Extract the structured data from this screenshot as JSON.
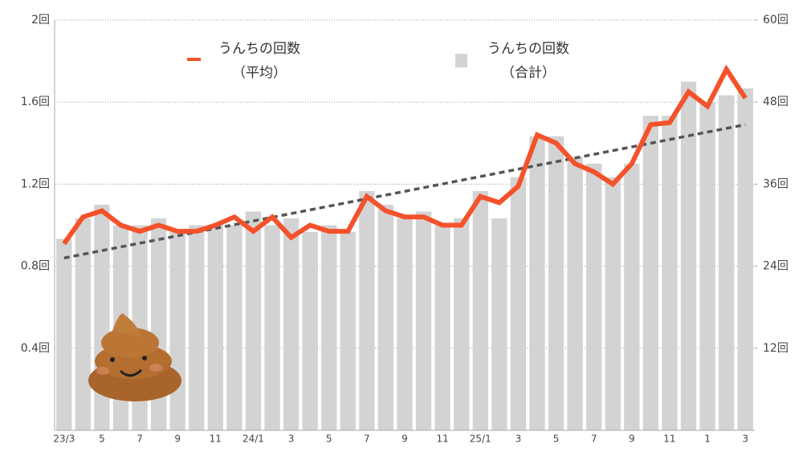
{
  "chart_data": {
    "type": "bar",
    "categories": [
      "23/3",
      null,
      "5",
      null,
      "7",
      null,
      "9",
      null,
      "11",
      null,
      "24/1",
      null,
      "3",
      null,
      "5",
      null,
      "7",
      null,
      "9",
      null,
      "11",
      null,
      "25/1",
      null,
      "3",
      null,
      "5",
      null,
      "7",
      null,
      "9",
      null,
      "11",
      null,
      "1",
      null,
      "3"
    ],
    "series": [
      {
        "name": "うんちの回数\n（平均）",
        "type": "line",
        "color": "#f4522b",
        "values": [
          0.91,
          1.04,
          1.07,
          1.0,
          0.97,
          1.0,
          0.97,
          0.97,
          1.0,
          1.04,
          0.97,
          1.04,
          0.94,
          1.0,
          0.97,
          0.97,
          1.14,
          1.07,
          1.04,
          1.04,
          1.0,
          1.0,
          1.14,
          1.11,
          1.19,
          1.44,
          1.4,
          1.3,
          1.26,
          1.2,
          1.3,
          1.49,
          1.5,
          1.65,
          1.58,
          1.76,
          1.62
        ]
      },
      {
        "name": "うんちの回数\n（合計）",
        "type": "bar",
        "axis": "y2",
        "color": "#d3d3d3",
        "values": [
          28,
          31,
          33,
          30,
          30,
          31,
          29,
          30,
          30,
          30,
          32,
          30,
          31,
          29,
          30,
          29,
          35,
          33,
          31,
          32,
          30,
          31,
          35,
          31,
          37,
          43,
          43,
          40,
          39,
          37,
          39,
          46,
          46,
          51,
          48,
          49,
          50
        ]
      }
    ],
    "trendline": {
      "values": [
        0.84,
        1.49
      ],
      "color": "#555555"
    },
    "ylim": [
      0,
      2
    ],
    "yticks": [
      {
        "value": 0.4,
        "label": "0.4回"
      },
      {
        "value": 0.8,
        "label": "0.8回"
      },
      {
        "value": 1.2,
        "label": "1.2回"
      },
      {
        "value": 1.6,
        "label": "1.6回"
      },
      {
        "value": 2,
        "label": "2回"
      }
    ],
    "y2lim": [
      0,
      60
    ],
    "y2ticks": [
      {
        "value": 12,
        "label": "12回"
      },
      {
        "value": 24,
        "label": "24回"
      },
      {
        "value": 36,
        "label": "36回"
      },
      {
        "value": 48,
        "label": "48回"
      },
      {
        "value": 60,
        "label": "60回"
      }
    ],
    "grid": true
  }
}
